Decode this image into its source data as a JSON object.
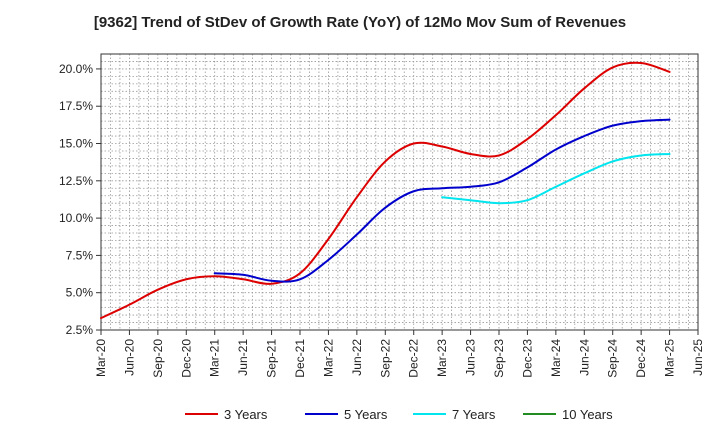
{
  "chart_data": {
    "type": "line",
    "title": "[9362]  Trend of StDev of Growth Rate (YoY) of 12Mo Mov Sum of Revenues",
    "xlabel": "",
    "ylabel": "",
    "ylim": [
      2.5,
      21.0
    ],
    "yticks": [
      2.5,
      5.0,
      7.5,
      10.0,
      12.5,
      15.0,
      17.5,
      20.0
    ],
    "ytick_labels": [
      "2.5%",
      "5.0%",
      "7.5%",
      "10.0%",
      "12.5%",
      "15.0%",
      "17.5%",
      "20.0%"
    ],
    "xtick_labels": [
      "Mar-20",
      "Jun-20",
      "Sep-20",
      "Dec-20",
      "Mar-21",
      "Jun-21",
      "Sep-21",
      "Dec-21",
      "Mar-22",
      "Jun-22",
      "Sep-22",
      "Dec-22",
      "Mar-23",
      "Jun-23",
      "Sep-23",
      "Dec-23",
      "Mar-24",
      "Jun-24",
      "Sep-24",
      "Dec-24",
      "Mar-25",
      "Jun-25"
    ],
    "grid": true,
    "legend_position": "bottom",
    "series": [
      {
        "name": "3 Years",
        "color": "#dd0000",
        "start_index": 0,
        "values": [
          3.3,
          4.2,
          5.2,
          5.9,
          6.1,
          5.9,
          5.6,
          6.3,
          8.6,
          11.4,
          13.8,
          15.0,
          14.8,
          14.3,
          14.2,
          15.3,
          16.9,
          18.7,
          20.1,
          20.4,
          19.8
        ]
      },
      {
        "name": "5 Years",
        "color": "#0000cc",
        "start_index": 4,
        "values": [
          6.3,
          6.2,
          5.8,
          5.9,
          7.2,
          8.9,
          10.7,
          11.8,
          12.0,
          12.1,
          12.4,
          13.4,
          14.6,
          15.5,
          16.2,
          16.5,
          16.6
        ]
      },
      {
        "name": "7 Years",
        "color": "#00e5ee",
        "start_index": 12,
        "values": [
          11.4,
          11.2,
          11.0,
          11.2,
          12.1,
          13.0,
          13.8,
          14.2,
          14.3
        ]
      },
      {
        "name": "10 Years",
        "color": "#228b22",
        "start_index": 0,
        "values": []
      }
    ]
  }
}
